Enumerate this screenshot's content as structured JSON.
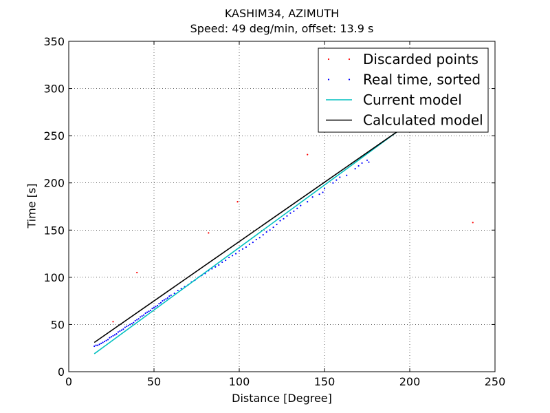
{
  "chart_data": {
    "type": "scatter",
    "title": "KASHIM34, AZIMUTH",
    "subtitle": "Speed: 49 deg/min, offset: 13.9 s",
    "xlabel": "Distance [Degree]",
    "ylabel": "Time [s]",
    "xlim": [
      0,
      250
    ],
    "ylim": [
      0,
      350
    ],
    "xticks": [
      0,
      50,
      100,
      150,
      200,
      250
    ],
    "yticks": [
      0,
      50,
      100,
      150,
      200,
      250,
      300,
      350
    ],
    "grid": true,
    "grid_style": "dotted",
    "legend_position": "top-right",
    "series": [
      {
        "name": "Discarded points",
        "kind": "points",
        "color": "#ff0000",
        "points": [
          [
            26,
            53
          ],
          [
            40,
            105
          ],
          [
            82,
            147
          ],
          [
            99,
            180
          ],
          [
            140,
            230
          ],
          [
            237,
            158
          ]
        ]
      },
      {
        "name": "Real time, sorted",
        "kind": "points",
        "color": "#0000ff",
        "points": [
          [
            15,
            27
          ],
          [
            16,
            28
          ],
          [
            17,
            28
          ],
          [
            18,
            29
          ],
          [
            19,
            30
          ],
          [
            20,
            31
          ],
          [
            21,
            32
          ],
          [
            22,
            33
          ],
          [
            23,
            34
          ],
          [
            24,
            36
          ],
          [
            25,
            37
          ],
          [
            26,
            38
          ],
          [
            27,
            39
          ],
          [
            28,
            40
          ],
          [
            29,
            42
          ],
          [
            30,
            43
          ],
          [
            31,
            44
          ],
          [
            32,
            45
          ],
          [
            33,
            47
          ],
          [
            34,
            48
          ],
          [
            35,
            49
          ],
          [
            36,
            50
          ],
          [
            37,
            51
          ],
          [
            38,
            52
          ],
          [
            39,
            54
          ],
          [
            40,
            55
          ],
          [
            41,
            56
          ],
          [
            42,
            58
          ],
          [
            43,
            59
          ],
          [
            44,
            60
          ],
          [
            45,
            62
          ],
          [
            46,
            63
          ],
          [
            47,
            64
          ],
          [
            48,
            65
          ],
          [
            49,
            67
          ],
          [
            50,
            68
          ],
          [
            51,
            69
          ],
          [
            52,
            70
          ],
          [
            53,
            72
          ],
          [
            54,
            73
          ],
          [
            55,
            75
          ],
          [
            56,
            76
          ],
          [
            57,
            77
          ],
          [
            58,
            78
          ],
          [
            59,
            80
          ],
          [
            60,
            81
          ],
          [
            62,
            83
          ],
          [
            64,
            86
          ],
          [
            66,
            88
          ],
          [
            68,
            90
          ],
          [
            70,
            92
          ],
          [
            72,
            95
          ],
          [
            74,
            97
          ],
          [
            76,
            100
          ],
          [
            78,
            102
          ],
          [
            80,
            104
          ],
          [
            82,
            107
          ],
          [
            84,
            109
          ],
          [
            86,
            111
          ],
          [
            88,
            113
          ],
          [
            90,
            116
          ],
          [
            92,
            118
          ],
          [
            94,
            121
          ],
          [
            96,
            123
          ],
          [
            98,
            125
          ],
          [
            100,
            128
          ],
          [
            102,
            130
          ],
          [
            104,
            132
          ],
          [
            106,
            135
          ],
          [
            108,
            137
          ],
          [
            110,
            140
          ],
          [
            112,
            142
          ],
          [
            114,
            145
          ],
          [
            116,
            148
          ],
          [
            118,
            150
          ],
          [
            120,
            153
          ],
          [
            122,
            156
          ],
          [
            124,
            160
          ],
          [
            126,
            162
          ],
          [
            128,
            165
          ],
          [
            130,
            168
          ],
          [
            132,
            170
          ],
          [
            134,
            173
          ],
          [
            136,
            176
          ],
          [
            140,
            180
          ],
          [
            143,
            185
          ],
          [
            147,
            188
          ],
          [
            149,
            190
          ],
          [
            150,
            194
          ],
          [
            155,
            200
          ],
          [
            157,
            203
          ],
          [
            159,
            206
          ],
          [
            163,
            208
          ],
          [
            168,
            215
          ],
          [
            170,
            218
          ],
          [
            172,
            221
          ],
          [
            175,
            224
          ],
          [
            176,
            222
          ]
        ]
      },
      {
        "name": "Current model",
        "kind": "line",
        "color": "#00bfbf",
        "points": [
          [
            15,
            19
          ],
          [
            194,
            256
          ]
        ]
      },
      {
        "name": "Calculated model",
        "kind": "line",
        "color": "#000000",
        "points": [
          [
            15,
            31
          ],
          [
            194,
            256
          ]
        ]
      }
    ]
  }
}
